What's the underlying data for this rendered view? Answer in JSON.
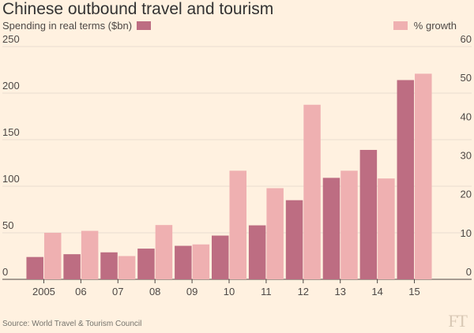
{
  "title": "Chinese outbound travel and tourism",
  "legend": {
    "spending_label": "Spending in real terms ($bn)",
    "growth_label": "% growth"
  },
  "source": "Source: World Travel & Tourism Council",
  "logo": "FT",
  "colors": {
    "background": "#fff1e0",
    "spending": "#bd6d82",
    "growth": "#efb0b1",
    "axis": "#4d4845",
    "grid": "#e8ddd0"
  },
  "chart_data": {
    "type": "bar",
    "title": "Chinese outbound travel and tourism",
    "categories": [
      "2005",
      "06",
      "07",
      "08",
      "09",
      "10",
      "11",
      "12",
      "13",
      "14",
      "15"
    ],
    "series": [
      {
        "name": "Spending in real terms ($bn)",
        "axis": "left",
        "values": [
          24,
          27,
          29,
          33,
          36,
          47,
          58,
          85,
          109,
          139,
          214
        ]
      },
      {
        "name": "% growth",
        "axis": "right",
        "values": [
          12,
          12.5,
          6,
          14,
          9,
          28,
          23.5,
          45,
          28,
          26,
          53
        ]
      }
    ],
    "left_axis": {
      "ylim": [
        0,
        250
      ],
      "ticks": [
        "0",
        "50",
        "100",
        "150",
        "200",
        "250"
      ]
    },
    "right_axis": {
      "ylim": [
        0,
        60
      ],
      "ticks": [
        "0",
        "10",
        "20",
        "30",
        "40",
        "50",
        "60"
      ]
    },
    "grid": true,
    "legend_placement": "top"
  }
}
